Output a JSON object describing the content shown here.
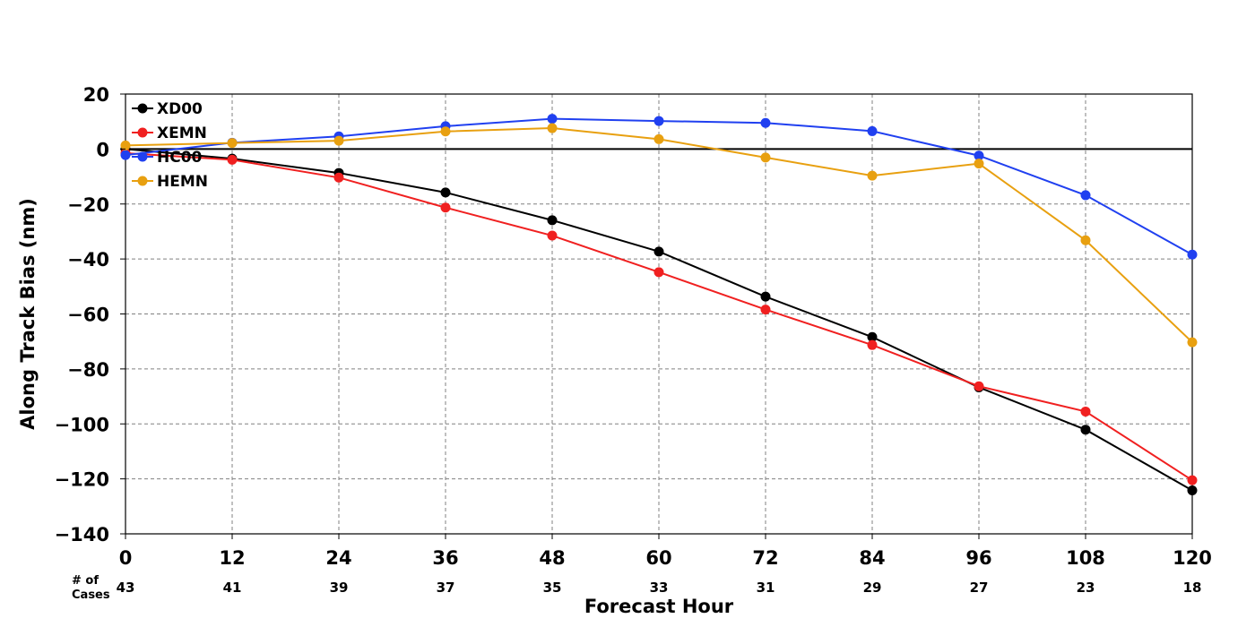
{
  "chart_data": {
    "type": "line",
    "title": "",
    "xlabel": "Forecast Hour",
    "ylabel": "Along Track Bias (nm)",
    "x": [
      0,
      12,
      24,
      36,
      48,
      60,
      72,
      84,
      96,
      108,
      120
    ],
    "xlim": [
      0,
      120
    ],
    "ylim": [
      -140,
      20
    ],
    "yticks": [
      20,
      0,
      -20,
      -40,
      -60,
      -80,
      -100,
      -120,
      -140
    ],
    "ytick_labels": [
      "20",
      "0",
      "−20",
      "−40",
      "−60",
      "−80",
      "−100",
      "−120",
      "−140"
    ],
    "xtick_labels": [
      "0",
      "12",
      "24",
      "36",
      "48",
      "60",
      "72",
      "84",
      "96",
      "108",
      "120"
    ],
    "grid": true,
    "legend_position": "top-left",
    "cases_caption": "# of Cases",
    "cases": [
      "43",
      "41",
      "39",
      "37",
      "35",
      "33",
      "31",
      "29",
      "27",
      "23",
      "18"
    ],
    "series": [
      {
        "name": "XD00",
        "color": "#000000",
        "values": [
          0,
          -3.5,
          -8.7,
          -15.8,
          -25.9,
          -37.3,
          -53.7,
          -68.4,
          -86.7,
          -102.1,
          -124.2
        ]
      },
      {
        "name": "XEMN",
        "color": "#f02020",
        "values": [
          -1.5,
          -3.9,
          -10.4,
          -21.3,
          -31.5,
          -44.8,
          -58.4,
          -71.3,
          -86.3,
          -95.5,
          -120.5
        ]
      },
      {
        "name": "HC00",
        "color": "#2040f0",
        "values": [
          -2.2,
          2.3,
          4.6,
          8.3,
          11.0,
          10.2,
          9.5,
          6.5,
          -2.4,
          -16.8,
          -38.4
        ]
      },
      {
        "name": "HEMN",
        "color": "#e8a010",
        "values": [
          1.3,
          2.2,
          3.0,
          6.4,
          7.6,
          3.6,
          -3.1,
          -9.7,
          -5.3,
          -33.2,
          -70.3
        ]
      }
    ]
  }
}
